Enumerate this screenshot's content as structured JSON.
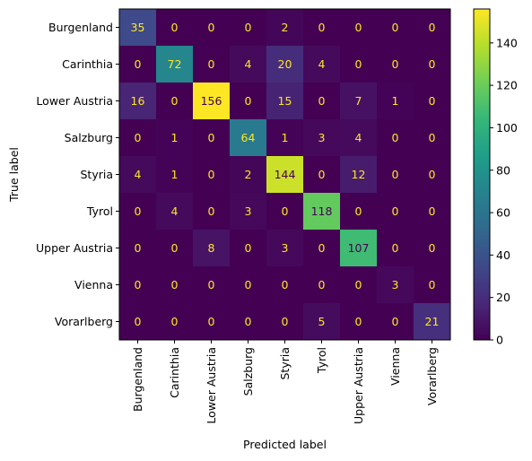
{
  "chart_data": {
    "type": "heatmap",
    "title": "",
    "xlabel": "Predicted label",
    "ylabel": "True label",
    "x_categories": [
      "Burgenland",
      "Carinthia",
      "Lower Austria",
      "Salzburg",
      "Styria",
      "Tyrol",
      "Upper Austria",
      "Vienna",
      "Vorarlberg"
    ],
    "y_categories": [
      "Burgenland",
      "Carinthia",
      "Lower Austria",
      "Salzburg",
      "Styria",
      "Tyrol",
      "Upper Austria",
      "Vienna",
      "Vorarlberg"
    ],
    "values": [
      [
        35,
        0,
        0,
        0,
        2,
        0,
        0,
        0,
        0
      ],
      [
        0,
        72,
        0,
        4,
        20,
        4,
        0,
        0,
        0
      ],
      [
        16,
        0,
        156,
        0,
        15,
        0,
        7,
        1,
        0
      ],
      [
        0,
        1,
        0,
        64,
        1,
        3,
        4,
        0,
        0
      ],
      [
        4,
        1,
        0,
        2,
        144,
        0,
        12,
        0,
        0
      ],
      [
        0,
        4,
        0,
        3,
        0,
        118,
        0,
        0,
        0
      ],
      [
        0,
        0,
        8,
        0,
        3,
        0,
        107,
        0,
        0
      ],
      [
        0,
        0,
        0,
        0,
        0,
        0,
        0,
        3,
        0
      ],
      [
        0,
        0,
        0,
        0,
        0,
        5,
        0,
        0,
        21
      ]
    ],
    "colormap": "viridis",
    "value_range": [
      0,
      156
    ],
    "colorbar_ticks": [
      0,
      20,
      40,
      60,
      80,
      100,
      120,
      140
    ],
    "text_color_dark_cells": "#fde725",
    "text_color_light_cells": "#440154",
    "grid": false
  }
}
